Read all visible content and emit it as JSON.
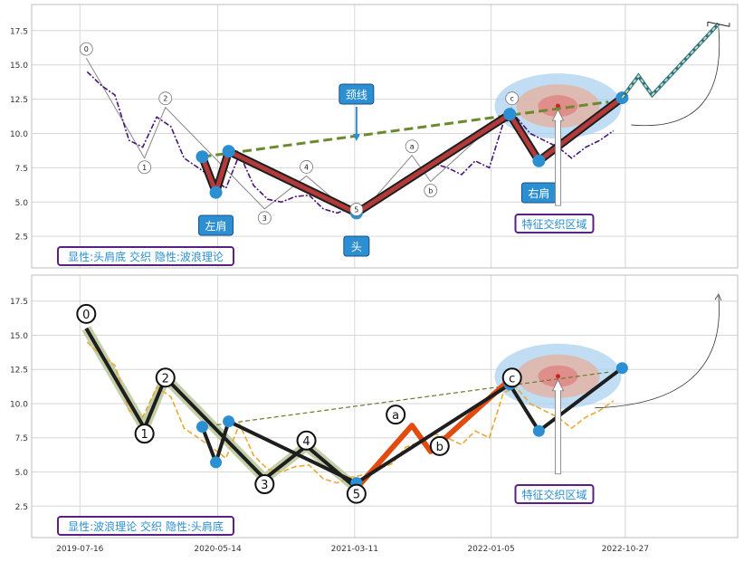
{
  "chart_data": [
    {
      "type": "line",
      "panel": "top",
      "title": "",
      "xlabel": "",
      "ylabel": "",
      "ylim": [
        0.2,
        19.4
      ],
      "yticks": [
        2.5,
        5.0,
        7.5,
        10.0,
        12.5,
        15.0,
        17.5
      ],
      "grid": true,
      "legend_text": "显性:头肩底 交织 隐性:波浪理论",
      "price_series": {
        "x": [
          "2019-08-01",
          "2019-09-01",
          "2019-10-01",
          "2019-11-01",
          "2019-12-01",
          "2020-01-01",
          "2020-02-01",
          "2020-03-01",
          "2020-04-01",
          "2020-05-01",
          "2020-06-01",
          "2020-07-01",
          "2020-08-01",
          "2020-09-01",
          "2020-10-01",
          "2020-11-01",
          "2020-12-01",
          "2021-01-01",
          "2021-02-01",
          "2021-03-01",
          "2021-04-01",
          "2021-05-01",
          "2021-06-01",
          "2021-07-01",
          "2021-08-01",
          "2021-09-01",
          "2021-10-01",
          "2021-11-01",
          "2021-12-01",
          "2022-01-01",
          "2022-02-01",
          "2022-03-01",
          "2022-04-01",
          "2022-05-01",
          "2022-06-01",
          "2022-07-01",
          "2022-08-01",
          "2022-09-01",
          "2022-10-01"
        ],
        "y": [
          14.5,
          13.5,
          12.8,
          9.5,
          9.0,
          11.2,
          10.5,
          8.2,
          7.5,
          6.8,
          6.0,
          8.5,
          6.2,
          5.2,
          5.0,
          5.4,
          5.5,
          4.5,
          4.2,
          4.6,
          4.8,
          5.2,
          5.6,
          6.8,
          7.2,
          7.8,
          7.5,
          7.0,
          8.0,
          7.5,
          10.8,
          11.2,
          10.0,
          9.5,
          9.0,
          8.2,
          9.0,
          9.5,
          10.2
        ]
      },
      "head_shoulders": {
        "x": [
          "2020-04-10",
          "2020-05-10",
          "2020-06-07",
          "2021-03-15",
          "2022-02-15",
          "2022-04-20",
          "2022-10-20"
        ],
        "y": [
          8.3,
          5.7,
          8.7,
          4.2,
          11.4,
          8.0,
          12.6
        ],
        "labels": [
          "左肩",
          "头",
          "右肩"
        ]
      },
      "neckline": {
        "x": [
          "2020-04-10",
          "2022-09-20"
        ],
        "y": [
          8.3,
          12.3
        ],
        "label": "颈线"
      },
      "wave_points": {
        "labels": [
          "0",
          "1",
          "2",
          "3",
          "4",
          "5",
          "a",
          "b",
          "c"
        ],
        "x": [
          "2019-07-30",
          "2019-12-05",
          "2020-01-20",
          "2020-08-25",
          "2020-11-25",
          "2021-03-15",
          "2021-07-15",
          "2021-08-25",
          "2022-02-20"
        ],
        "y": [
          15.5,
          8.2,
          11.9,
          4.5,
          6.9,
          3.8,
          8.4,
          6.5,
          11.9
        ]
      },
      "projection": {
        "x": [
          "2022-10-20",
          "2022-11-25",
          "2022-12-25",
          "2023-05-20"
        ],
        "y": [
          12.6,
          14.2,
          12.8,
          18.0
        ]
      },
      "target_region": {
        "x": "2022-06-01",
        "y": 12.0,
        "label": "特征交织区域"
      }
    },
    {
      "type": "line",
      "panel": "bottom",
      "title": "",
      "xlabel": "",
      "ylabel": "",
      "ylim": [
        0.2,
        19.4
      ],
      "yticks": [
        2.5,
        5.0,
        7.5,
        10.0,
        12.5,
        15.0,
        17.5
      ],
      "xtick_labels": [
        "2019-07-16",
        "2020-05-14",
        "2021-03-11",
        "2022-01-05",
        "2022-10-27"
      ],
      "grid": true,
      "legend_text": "显性:波浪理论 交织 隐性:头肩底",
      "price_series": {
        "x": [
          "2019-08-01",
          "2019-09-01",
          "2019-10-01",
          "2019-11-01",
          "2019-12-01",
          "2020-01-01",
          "2020-02-01",
          "2020-03-01",
          "2020-04-01",
          "2020-05-01",
          "2020-06-01",
          "2020-07-01",
          "2020-08-01",
          "2020-09-01",
          "2020-10-01",
          "2020-11-01",
          "2020-12-01",
          "2021-01-01",
          "2021-02-01",
          "2021-03-01",
          "2021-04-01",
          "2021-05-01",
          "2021-06-01",
          "2021-07-01",
          "2021-08-01",
          "2021-09-01",
          "2021-10-01",
          "2021-11-01",
          "2021-12-01",
          "2022-01-01",
          "2022-02-01",
          "2022-03-01",
          "2022-04-01",
          "2022-05-01",
          "2022-06-01",
          "2022-07-01",
          "2022-08-01",
          "2022-09-01",
          "2022-10-01"
        ],
        "y": [
          14.5,
          13.5,
          12.8,
          9.5,
          9.0,
          11.2,
          10.5,
          8.2,
          7.5,
          6.8,
          6.0,
          8.5,
          6.2,
          5.2,
          5.0,
          5.4,
          5.5,
          4.5,
          4.2,
          4.6,
          4.8,
          5.2,
          5.6,
          6.8,
          7.2,
          7.8,
          7.5,
          7.0,
          8.0,
          7.5,
          10.8,
          11.2,
          10.0,
          9.5,
          9.0,
          8.2,
          9.0,
          9.5,
          10.2
        ]
      },
      "wave_points": {
        "labels": [
          "0",
          "1",
          "2",
          "3",
          "4",
          "5",
          "a",
          "b",
          "c"
        ],
        "x": [
          "2019-07-30",
          "2019-12-05",
          "2020-01-20",
          "2020-08-25",
          "2020-11-25",
          "2021-03-15",
          "2021-07-15",
          "2021-08-25",
          "2022-02-20"
        ],
        "y": [
          15.5,
          8.2,
          11.9,
          4.5,
          6.9,
          3.8,
          8.4,
          6.5,
          11.9
        ]
      },
      "head_shoulders": {
        "x": [
          "2020-04-10",
          "2020-05-10",
          "2020-06-07",
          "2021-03-15",
          "2022-02-15",
          "2022-04-20",
          "2022-10-20"
        ],
        "y": [
          8.3,
          5.7,
          8.7,
          4.2,
          11.4,
          8.0,
          12.6
        ]
      },
      "target_region": {
        "x": "2022-06-01",
        "y": 12.0,
        "label": "特征交织区域"
      }
    }
  ]
}
